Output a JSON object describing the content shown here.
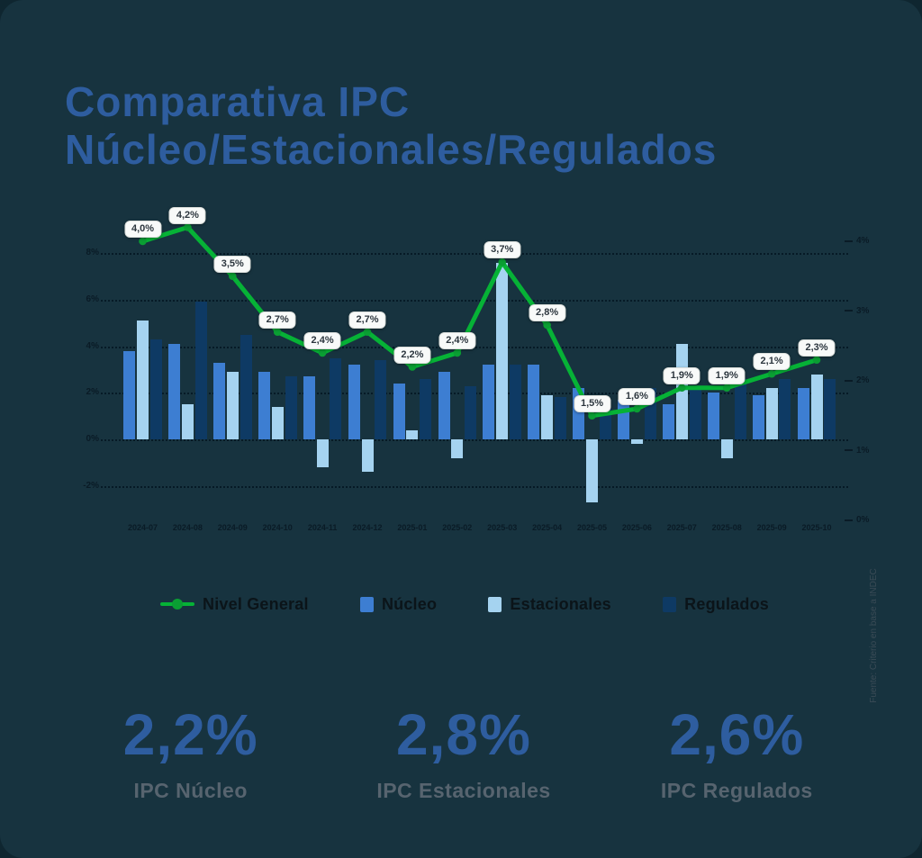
{
  "page": {
    "title_line1": "Comparativa IPC",
    "title_line2": "Núcleo/Estacionales/Regulados",
    "source_note": "Fuente: Criterio en base a INDEC"
  },
  "chart_data": {
    "type": "bar",
    "subtype": "grouped-bars-with-line-overlay-dual-axis",
    "title": "",
    "xlabel": "",
    "ylabel": "",
    "categories": [
      "2024-07",
      "2024-08",
      "2024-09",
      "2024-10",
      "2024-11",
      "2024-12",
      "2025-01",
      "2025-02",
      "2025-03",
      "2025-04",
      "2025-05",
      "2025-06",
      "2025-07",
      "2025-08",
      "2025-09",
      "2025-10"
    ],
    "series": [
      {
        "name": "Nivel General",
        "type": "line",
        "axis": "right",
        "color": "#06b236",
        "values": [
          4.0,
          4.2,
          3.5,
          2.7,
          2.4,
          2.7,
          2.2,
          2.4,
          3.7,
          2.8,
          1.5,
          1.6,
          1.9,
          1.9,
          2.1,
          2.3
        ],
        "point_labels": [
          "4,0%",
          "4,2%",
          "3,5%",
          "2,7%",
          "2,4%",
          "2,7%",
          "2,2%",
          "2,4%",
          "3,7%",
          "2,8%",
          "1,5%",
          "1,6%",
          "1,9%",
          "1,9%",
          "2,1%",
          "2,3%"
        ]
      },
      {
        "name": "Núcleo",
        "type": "bar",
        "axis": "left",
        "color": "#3d7ed2",
        "values": [
          3.8,
          4.1,
          3.3,
          2.9,
          2.7,
          3.2,
          2.4,
          2.9,
          3.2,
          3.2,
          2.2,
          1.7,
          1.5,
          2.0,
          1.9,
          2.2
        ]
      },
      {
        "name": "Estacionales",
        "type": "bar",
        "axis": "left",
        "color": "#a5d3f0",
        "values": [
          5.1,
          1.5,
          2.9,
          1.4,
          -1.2,
          -1.4,
          0.4,
          -0.8,
          7.6,
          1.9,
          -2.7,
          -0.2,
          4.1,
          -0.8,
          2.2,
          2.8
        ]
      },
      {
        "name": "Regulados",
        "type": "bar",
        "axis": "left",
        "color": "#0e3a64",
        "values": [
          4.3,
          5.9,
          4.5,
          2.7,
          3.5,
          3.4,
          2.6,
          2.3,
          3.2,
          1.8,
          1.3,
          2.2,
          2.3,
          2.6,
          2.6,
          2.6
        ]
      }
    ],
    "left_axis": {
      "tick_labels": [
        "8%",
        "6%",
        "4%",
        "2%",
        "0%",
        "-2%"
      ],
      "tick_values": [
        8,
        6,
        4,
        2,
        0,
        -2
      ],
      "range": [
        -3.6,
        9.6
      ]
    },
    "right_axis": {
      "tick_labels": [
        "4%",
        "3%",
        "2%",
        "1%",
        "0%"
      ],
      "tick_values": [
        4,
        3,
        2,
        1,
        0
      ],
      "range": [
        0,
        4.4
      ]
    },
    "grid": "horizontal-dotted",
    "legend_position": "bottom"
  },
  "legend": {
    "items": [
      {
        "label": "Nivel General",
        "marker": "line-dot",
        "color": "#06b236"
      },
      {
        "label": "Núcleo",
        "marker": "square",
        "color": "#3d7ed2"
      },
      {
        "label": "Estacionales",
        "marker": "square",
        "color": "#a5d3f0"
      },
      {
        "label": "Regulados",
        "marker": "square",
        "color": "#0e3a64"
      }
    ]
  },
  "stats": [
    {
      "value": "2,2%",
      "label": "IPC Núcleo"
    },
    {
      "value": "2,8%",
      "label": "IPC Estacionales"
    },
    {
      "value": "2,6%",
      "label": "IPC Regulados"
    }
  ],
  "colors": {
    "background_outer": "#0f2630",
    "card_background": "#17333f",
    "title_blue": "#2e5d9f",
    "stat_value_blue": "#2e5d9f",
    "stat_label_gray": "#57646f",
    "line_green": "#06b236",
    "line_point_green": "#0a9e33",
    "bar_nucleo": "#3d7ed2",
    "bar_estacionales": "#a5d3f0",
    "bar_regulados": "#0e3a64",
    "axis_text": "#0a1b26",
    "legend_text": "#0b1419",
    "chip_background": "#f8faf9",
    "chip_text": "#2c363e"
  }
}
